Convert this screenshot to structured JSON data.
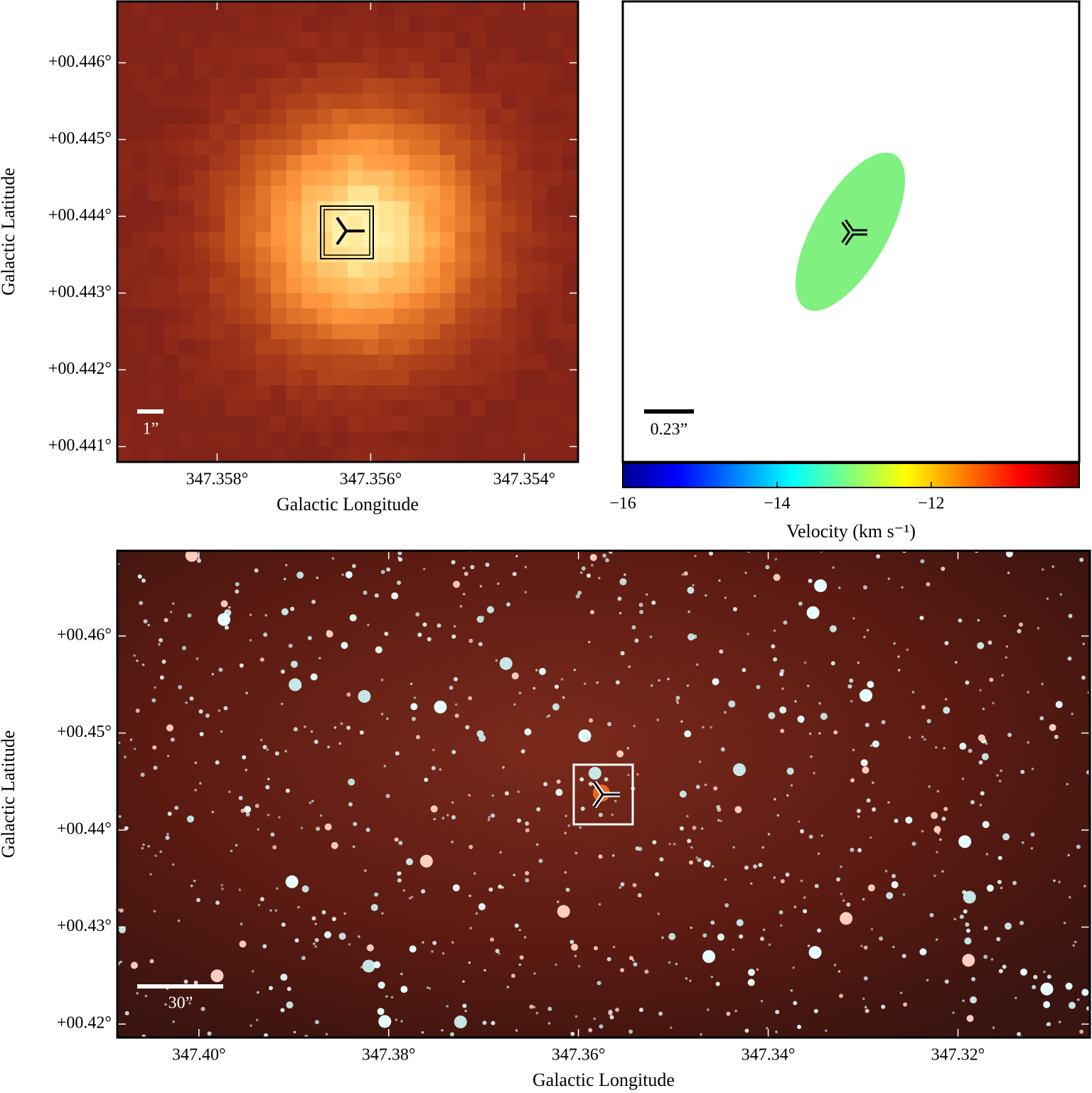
{
  "chart_data": [
    {
      "type": "image",
      "x_label": "Galactic Longitude",
      "y_label": "Galactic Latitude",
      "xlim": [
        347.3593,
        347.3533
      ],
      "ylim": [
        0.4408,
        0.4468
      ],
      "xticks": [
        {
          "value": 347.358,
          "label": "347.358°"
        },
        {
          "value": 347.356,
          "label": "347.356°"
        },
        {
          "value": 347.354,
          "label": "347.354°"
        }
      ],
      "yticks": [
        {
          "value": 0.446,
          "label": "+00.446°"
        },
        {
          "value": 0.445,
          "label": "+00.445°"
        },
        {
          "value": 0.444,
          "label": "+00.444°"
        },
        {
          "value": 0.443,
          "label": "+00.443°"
        },
        {
          "value": 0.442,
          "label": "+00.442°"
        },
        {
          "value": 0.441,
          "label": "+00.441°"
        }
      ],
      "scale_bar_label": "1”"
    },
    {
      "type": "ellipse",
      "scale_bar_label": "0.23”",
      "ellipse_color": "#80f080",
      "colorbar": {
        "label": "Velocity (km s⁻¹)",
        "lim": [
          -16,
          -10.08
        ],
        "colormap": "jet",
        "ticks": [
          {
            "value": -16,
            "label": "−16"
          },
          {
            "value": -14,
            "label": "−14"
          },
          {
            "value": -12,
            "label": "−12"
          }
        ]
      }
    },
    {
      "type": "image",
      "x_label": "Galactic Longitude",
      "y_label": "Galactic Latitude",
      "xlim": [
        347.4086,
        347.3061
      ],
      "ylim": [
        0.41861,
        0.46879
      ],
      "xticks": [
        {
          "value": 347.4,
          "label": "347.40°"
        },
        {
          "value": 347.38,
          "label": "347.38°"
        },
        {
          "value": 347.36,
          "label": "347.36°"
        },
        {
          "value": 347.34,
          "label": "347.34°"
        },
        {
          "value": 347.32,
          "label": "347.32°"
        }
      ],
      "yticks": [
        {
          "value": 0.46,
          "label": "+00.46°"
        },
        {
          "value": 0.45,
          "label": "+00.45°"
        },
        {
          "value": 0.44,
          "label": "+00.44°"
        },
        {
          "value": 0.43,
          "label": "+00.43°"
        },
        {
          "value": 0.42,
          "label": "+00.42°"
        }
      ],
      "scale_bar_label": "30”"
    }
  ]
}
